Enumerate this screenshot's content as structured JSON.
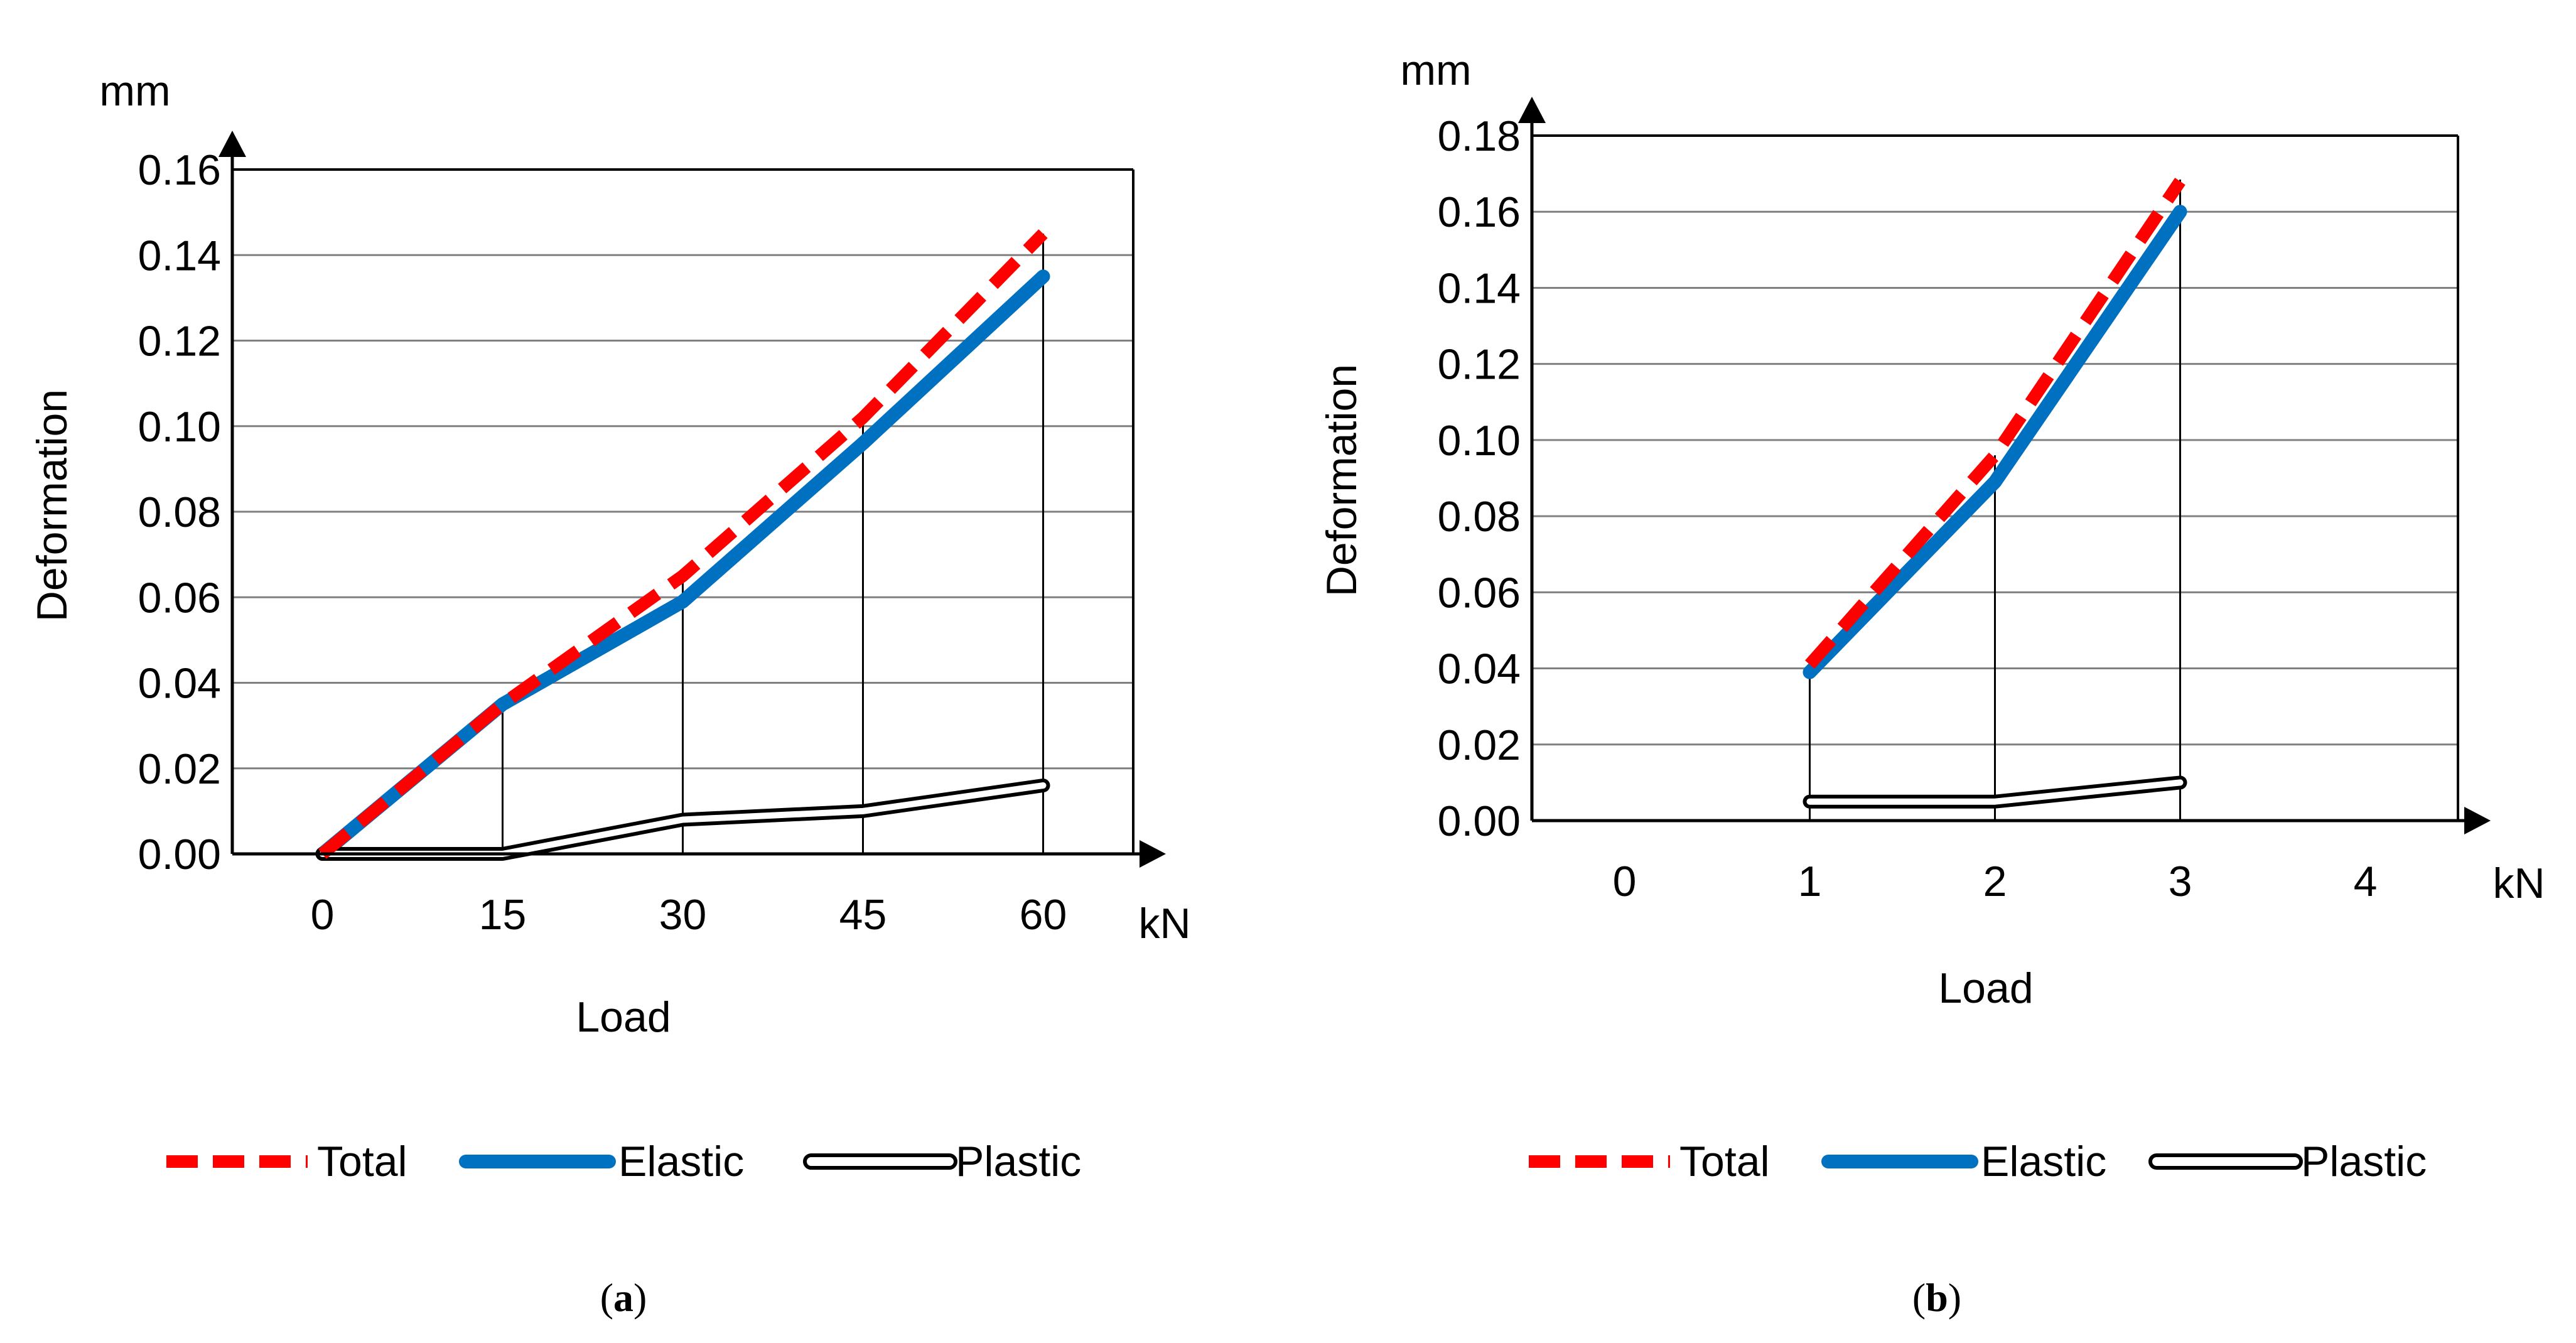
{
  "colors": {
    "total": "#ff0000",
    "elastic": "#0070c0",
    "plastic": "#000000",
    "grid": "#808080",
    "axis": "#000000"
  },
  "chart_data": [
    {
      "type": "line",
      "caption_letter": "a",
      "x_unit": "kN",
      "y_unit": "mm",
      "xlabel": "Load",
      "ylabel": "Deformation",
      "categories": [
        "0",
        "15",
        "30",
        "45",
        "60"
      ],
      "x": [
        0,
        15,
        30,
        45,
        60
      ],
      "ylim": [
        0,
        0.16
      ],
      "yticks": [
        "0.00",
        "0.02",
        "0.04",
        "0.06",
        "0.08",
        "0.10",
        "0.12",
        "0.14",
        "0.16"
      ],
      "grid": true,
      "legend_position": "bottom",
      "series": [
        {
          "name": "Total",
          "style": "dashed",
          "values": [
            0,
            0.035,
            0.065,
            0.102,
            0.145
          ]
        },
        {
          "name": "Elastic",
          "style": "solid",
          "values": [
            0,
            0.035,
            0.059,
            0.096,
            0.135
          ]
        },
        {
          "name": "Plastic",
          "style": "double",
          "values": [
            0,
            0,
            0.008,
            0.01,
            0.016
          ]
        }
      ]
    },
    {
      "type": "line",
      "caption_letter": "b",
      "x_unit": "kN",
      "y_unit": "mm",
      "xlabel": "Load",
      "ylabel": "Deformation",
      "categories": [
        "0",
        "1",
        "2",
        "3",
        "4"
      ],
      "x": [
        1,
        2,
        3
      ],
      "ylim": [
        0,
        0.18
      ],
      "yticks": [
        "0.00",
        "0.02",
        "0.04",
        "0.06",
        "0.08",
        "0.10",
        "0.12",
        "0.14",
        "0.16",
        "0.18"
      ],
      "grid": true,
      "legend_position": "bottom",
      "series": [
        {
          "name": "Total",
          "style": "dashed",
          "values": [
            0.041,
            0.096,
            0.168
          ]
        },
        {
          "name": "Elastic",
          "style": "solid",
          "values": [
            0.039,
            0.089,
            0.16
          ]
        },
        {
          "name": "Plastic",
          "style": "double",
          "values": [
            0.005,
            0.005,
            0.01
          ]
        }
      ]
    }
  ]
}
